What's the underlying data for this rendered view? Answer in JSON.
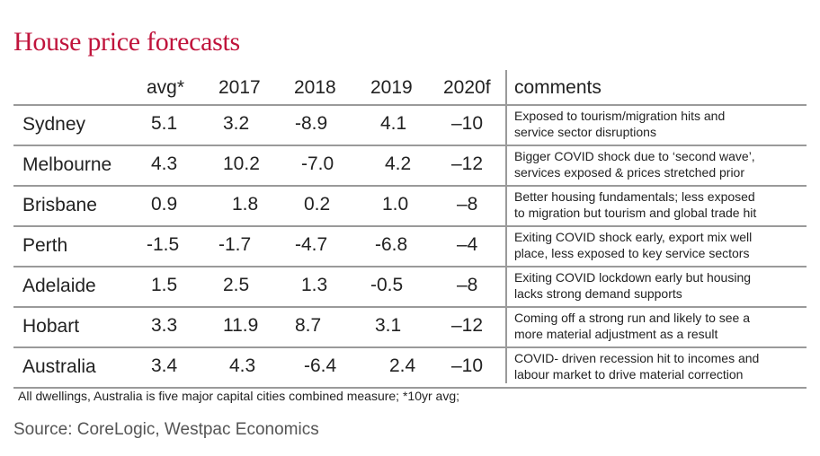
{
  "title": "House price forecasts",
  "chart_data": {
    "type": "table",
    "columns": [
      "avg*",
      "2017",
      "2018",
      "2019",
      "2020f",
      "comments"
    ],
    "rows": [
      {
        "city": "Sydney",
        "avg": "5.1",
        "y2017": "3.2",
        "y2018": "-8.9",
        "y2019": "4.1",
        "y2020f": "–10",
        "comment": [
          "Exposed to tourism/migration hits and",
          "service sector disruptions"
        ]
      },
      {
        "city": "Melbourne",
        "avg": "4.3",
        "y2017": "10.2",
        "y2018": "-7.0",
        "y2019": "4.2",
        "y2020f": "–12",
        "comment": [
          "Bigger COVID shock due to ‘second wave’,",
          "services exposed & prices stretched prior"
        ]
      },
      {
        "city": "Brisbane",
        "avg": "0.9",
        "y2017": "1.8",
        "y2018": "0.2",
        "y2019": "1.0",
        "y2020f": "–8",
        "comment": [
          "Better housing fundamentals; less exposed",
          "to migration but tourism and global trade hit"
        ]
      },
      {
        "city": "Perth",
        "avg": "-1.5",
        "y2017": "-1.7",
        "y2018": "-4.7",
        "y2019": "-6.8",
        "y2020f": "–4",
        "comment": [
          "Exiting COVID shock early, export mix well",
          "place, less exposed to key service sectors"
        ]
      },
      {
        "city": "Adelaide",
        "avg": "1.5",
        "y2017": "2.5",
        "y2018": "1.3",
        "y2019": "-0.5",
        "y2020f": "–8",
        "comment": [
          "Exiting COVID lockdown early but  housing",
          "lacks strong demand supports"
        ]
      },
      {
        "city": "Hobart",
        "avg": "3.3",
        "y2017": "11.9",
        "y2018": "8.7",
        "y2019": "3.1",
        "y2020f": "–12",
        "comment": [
          "Coming off a strong run and likely to see a",
          "more material adjustment as a result"
        ]
      },
      {
        "city": "Australia",
        "avg": "3.4",
        "y2017": "4.3",
        "y2018": "-6.4",
        "y2019": "2.4",
        "y2020f": "–10",
        "comment": [
          "COVID- driven recession hit to incomes and",
          "labour market to drive material correction"
        ]
      }
    ]
  },
  "footnote": "All dwellings, Australia is five major capital cities combined measure; *10yr avg;",
  "source": "Source: CoreLogic, Westpac Economics",
  "colors": {
    "title": "#c0143c",
    "rule": "#9a9a9a"
  }
}
